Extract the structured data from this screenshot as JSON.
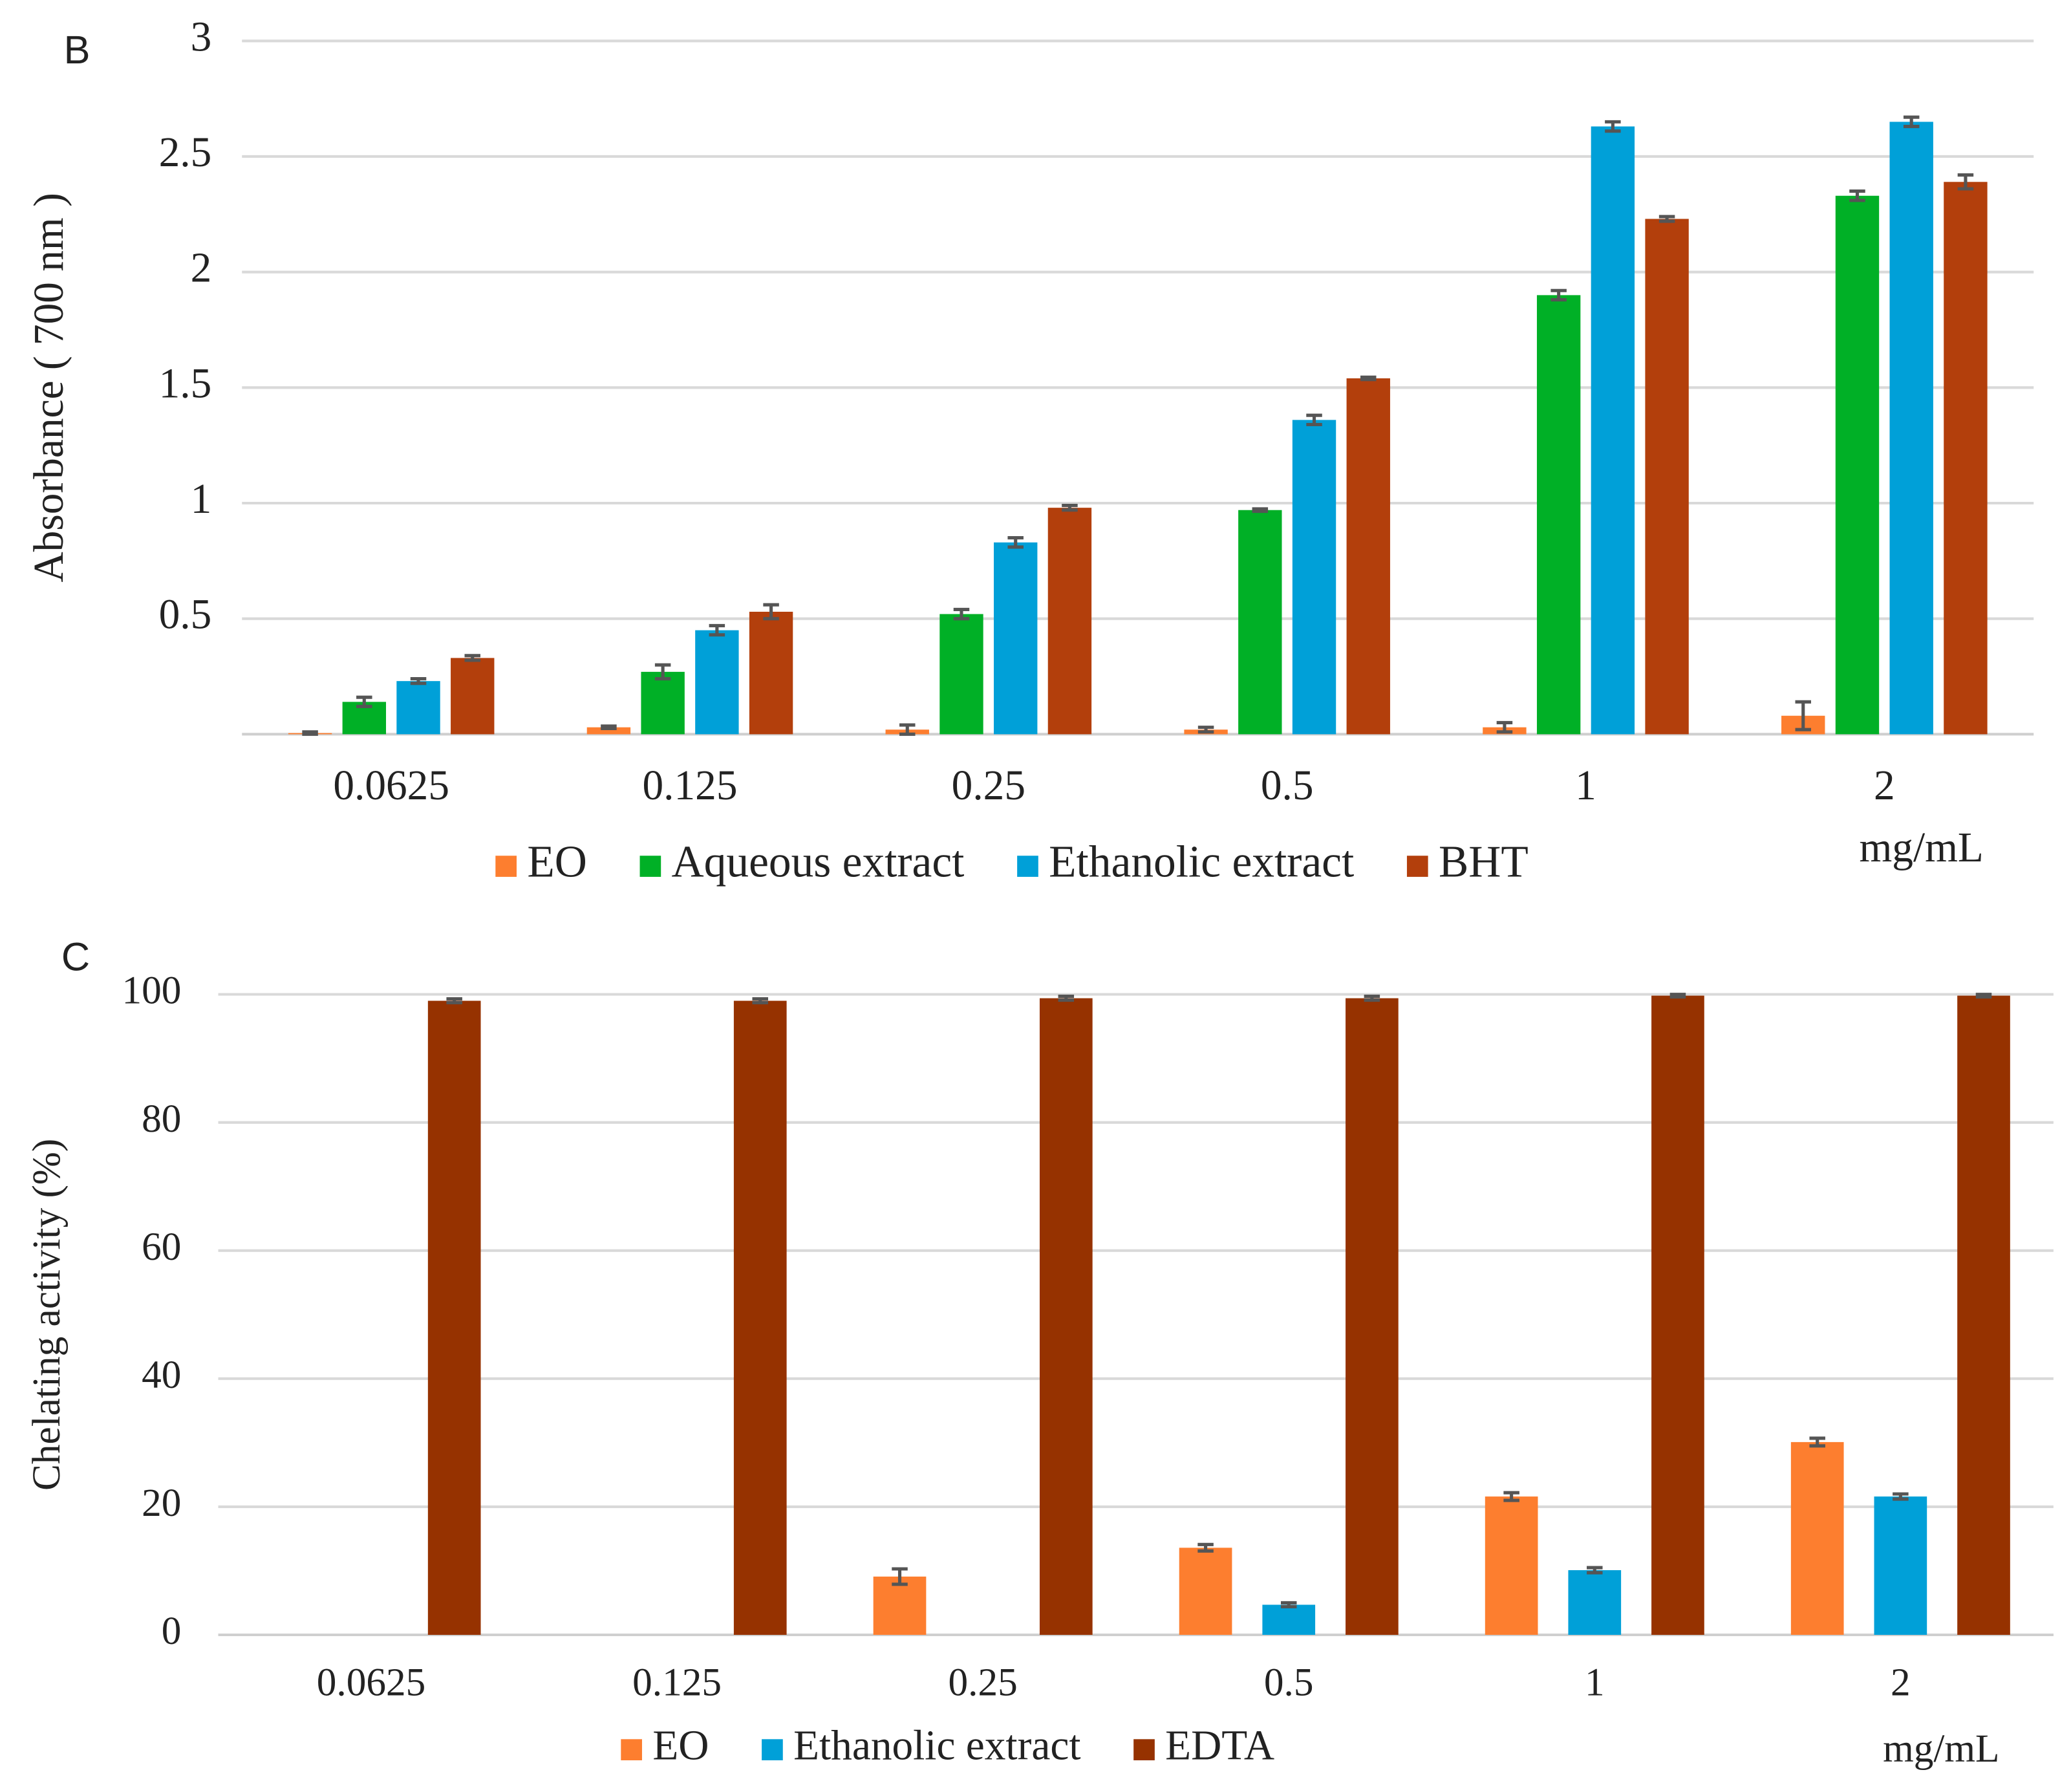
{
  "chart_data": [
    {
      "type": "bar",
      "panel": "B",
      "ylabel": "Absorbance ( 700 nm )",
      "xlabel": "mg/mL",
      "categories": [
        "0.0625",
        "0.125",
        "0.25",
        "0.5",
        "1",
        "2"
      ],
      "series": [
        {
          "name": "EO",
          "color": "#fd7e2f",
          "values": [
            0.005,
            0.03,
            0.02,
            0.02,
            0.03,
            0.08
          ],
          "errors": [
            0.005,
            0.005,
            0.02,
            0.01,
            0.02,
            0.06
          ]
        },
        {
          "name": "Aqueous extract",
          "color": "#00b026",
          "values": [
            0.14,
            0.27,
            0.52,
            0.97,
            1.9,
            2.33
          ],
          "errors": [
            0.02,
            0.03,
            0.02,
            0.005,
            0.02,
            0.02
          ]
        },
        {
          "name": "Ethanolic extract",
          "color": "#00a0d8",
          "values": [
            0.23,
            0.45,
            0.83,
            1.36,
            2.63,
            2.65
          ],
          "errors": [
            0.01,
            0.02,
            0.02,
            0.02,
            0.02,
            0.02
          ]
        },
        {
          "name": "BHT",
          "color": "#b33f0c",
          "values": [
            0.33,
            0.53,
            0.98,
            1.54,
            2.23,
            2.39
          ],
          "errors": [
            0.01,
            0.03,
            0.01,
            0.005,
            0.01,
            0.03
          ]
        }
      ],
      "ylim": [
        0,
        3
      ],
      "yticks": [
        0.5,
        1,
        1.5,
        2,
        2.5,
        3
      ],
      "grid": true
    },
    {
      "type": "bar",
      "panel": "C",
      "ylabel": "Chelating activity (%)",
      "xlabel": "mg/mL",
      "categories": [
        "0.0625",
        "0.125",
        "0.25",
        "0.5",
        "1",
        "2"
      ],
      "series": [
        {
          "name": "EO",
          "color": "#fd7e2f",
          "values": [
            null,
            null,
            9.1,
            13.6,
            21.6,
            30.1
          ],
          "errors": [
            null,
            null,
            1.2,
            0.5,
            0.6,
            0.6
          ]
        },
        {
          "name": "Ethanolic extract",
          "color": "#00a0d8",
          "values": [
            null,
            null,
            null,
            4.7,
            10.1,
            21.6
          ],
          "errors": [
            null,
            null,
            null,
            0.3,
            0.4,
            0.4
          ]
        },
        {
          "name": "EDTA",
          "color": "#963200",
          "values": [
            99.0,
            99.0,
            99.4,
            99.4,
            99.8,
            99.8
          ],
          "errors": [
            0.3,
            0.3,
            0.3,
            0.3,
            0.2,
            0.2
          ]
        }
      ],
      "ylim": [
        0,
        100
      ],
      "yticks": [
        0,
        20,
        40,
        60,
        80,
        100
      ],
      "grid": true
    }
  ]
}
